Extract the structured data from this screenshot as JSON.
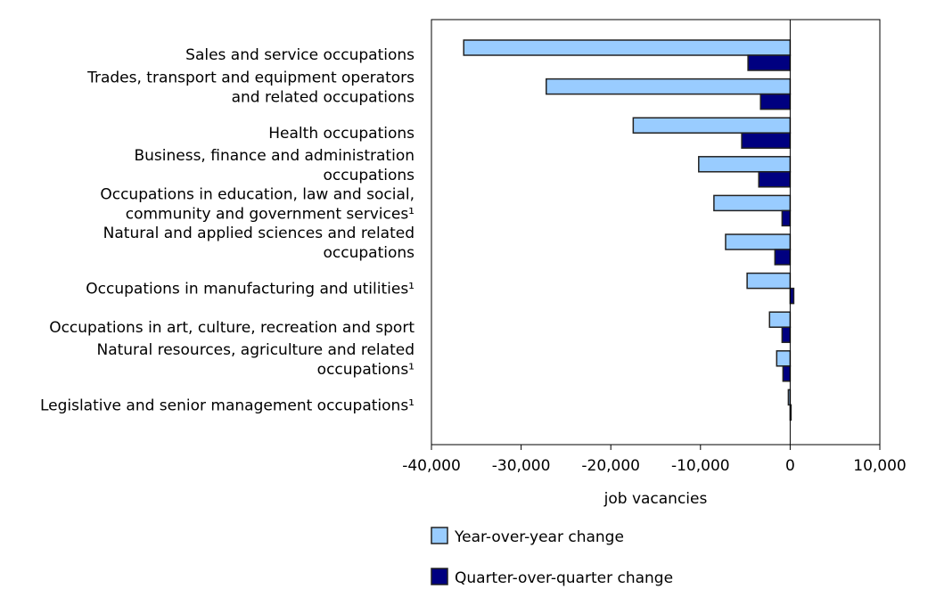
{
  "chart_data": {
    "type": "bar",
    "orientation": "horizontal",
    "categories": [
      [
        "Sales and service occupations"
      ],
      [
        "Trades, transport and equipment operators",
        "and related occupations"
      ],
      [
        "Health occupations"
      ],
      [
        "Business, finance and administration",
        "occupations"
      ],
      [
        "Occupations in education, law and social,",
        "community and government services¹"
      ],
      [
        "Natural and applied sciences and related",
        "occupations"
      ],
      [
        "Occupations in manufacturing and utilities¹"
      ],
      [
        "Occupations in art, culture, recreation and sport"
      ],
      [
        "Natural resources, agriculture and related",
        "occupations¹"
      ],
      [
        "Legislative and senior management occupations¹"
      ]
    ],
    "series": [
      {
        "name": "Year-over-year change",
        "color": "#99ccff",
        "values": [
          -36400,
          -27200,
          -17500,
          -10200,
          -8500,
          -7200,
          -4800,
          -2300,
          -1500,
          -200
        ]
      },
      {
        "name": "Quarter-over-quarter change",
        "color": "#000080",
        "values": [
          -4700,
          -3300,
          -5400,
          -3500,
          -900,
          -1700,
          400,
          -900,
          -800,
          100
        ]
      }
    ],
    "xlabel": "job vacancies",
    "ylabel": "",
    "xlim": [
      -40000,
      10000
    ],
    "xticks": [
      -40000,
      -30000,
      -20000,
      -10000,
      0,
      10000
    ],
    "xtick_labels": [
      "-40,000",
      "-30,000",
      "-20,000",
      "-10,000",
      "0",
      "10,000"
    ],
    "grid": false,
    "legend_position": "bottom"
  }
}
